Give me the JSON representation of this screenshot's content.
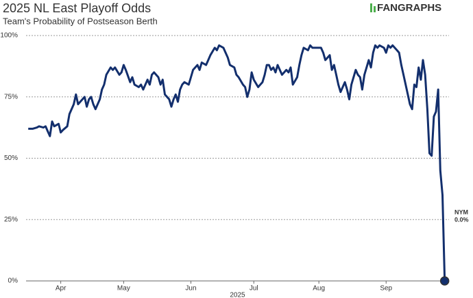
{
  "chart_data": {
    "type": "line",
    "title": "2025 NL East Playoff Odds",
    "subtitle": "Team's Probability of Postseason Berth",
    "logo": "FANGRAPHS",
    "xlabel": "2025",
    "x": [
      75,
      77,
      79,
      80,
      82,
      83,
      84,
      85,
      86,
      87,
      89,
      90,
      91,
      93,
      94,
      96,
      97,
      98,
      99,
      101,
      102,
      103,
      104,
      105,
      106,
      108,
      109,
      110,
      111,
      113,
      114,
      115,
      117,
      118,
      119,
      120,
      122,
      123,
      124,
      126,
      127,
      128,
      130,
      131,
      132,
      133,
      135,
      136,
      137,
      138,
      140,
      141,
      142,
      143,
      144,
      145,
      146,
      147,
      149,
      150,
      151,
      153,
      154,
      155,
      157,
      158,
      159,
      161,
      162,
      163,
      165,
      166,
      167,
      168,
      170,
      171,
      172,
      174,
      175,
      176,
      177,
      178,
      179,
      181,
      182,
      183,
      184,
      185,
      186,
      187,
      188,
      189,
      190,
      192,
      193,
      194,
      195,
      196,
      197,
      199,
      200,
      201,
      202,
      204,
      205,
      206,
      207,
      209,
      210,
      211,
      212,
      214,
      215,
      216,
      217,
      218,
      219,
      221,
      222,
      223,
      224,
      226,
      227,
      228,
      229,
      230,
      232,
      233,
      234,
      235,
      236,
      237,
      239,
      240,
      241,
      242,
      243,
      245,
      246,
      247,
      248,
      250,
      251,
      252,
      253,
      254,
      255,
      256,
      257,
      258,
      259,
      260,
      261,
      262,
      263,
      264,
      265,
      266,
      267
    ],
    "series": [
      {
        "name": "NYM",
        "color": "#132f6d",
        "end_label": "0.0%",
        "values": [
          62,
          62,
          62.5,
          63,
          62.5,
          63,
          61,
          59,
          65,
          63,
          64,
          60.5,
          61.5,
          63,
          68,
          72,
          76,
          72,
          73,
          75,
          71,
          74,
          75,
          72,
          70,
          74,
          78,
          80,
          84,
          87,
          86,
          87,
          84,
          85,
          88,
          86,
          81,
          83,
          80,
          79,
          80,
          78,
          82,
          80,
          84,
          85,
          83,
          80,
          82,
          76,
          74,
          71,
          74,
          76,
          73,
          78,
          80,
          81,
          80,
          83,
          86,
          88,
          86,
          89,
          88,
          90,
          92,
          95,
          94,
          96,
          95,
          93,
          91,
          88,
          87,
          84,
          83,
          80,
          79,
          75,
          78,
          85,
          82,
          79,
          80,
          81,
          84,
          88,
          88,
          86,
          87,
          85,
          88,
          84,
          85,
          86,
          85,
          87,
          80,
          83,
          88,
          92,
          95,
          94,
          96,
          95,
          95,
          95,
          95,
          93,
          90,
          92,
          86,
          88,
          84,
          80,
          77,
          81,
          78,
          74,
          80,
          86,
          84,
          83,
          78,
          84,
          90,
          87,
          93,
          96,
          95,
          96,
          95,
          93,
          96,
          95,
          96,
          94,
          93,
          88,
          84,
          76,
          72,
          70,
          80,
          79,
          87,
          82,
          90,
          84,
          70,
          52,
          51,
          67,
          69,
          78,
          45,
          35,
          0
        ]
      }
    ],
    "xlim": [
      74,
      269
    ],
    "xticks": [
      {
        "value": 90,
        "label": "Apr"
      },
      {
        "value": 119,
        "label": "May"
      },
      {
        "value": 150,
        "label": "Jun"
      },
      {
        "value": 179,
        "label": "Jul"
      },
      {
        "value": 209,
        "label": "Aug"
      },
      {
        "value": 240,
        "label": "Sep"
      }
    ],
    "ylim": [
      0,
      100
    ],
    "yticks": [
      {
        "value": 0,
        "label": "0%"
      },
      {
        "value": 25,
        "label": "25%"
      },
      {
        "value": 50,
        "label": "50%"
      },
      {
        "value": 75,
        "label": "75%"
      },
      {
        "value": 100,
        "label": "100%"
      }
    ],
    "grid": true
  }
}
